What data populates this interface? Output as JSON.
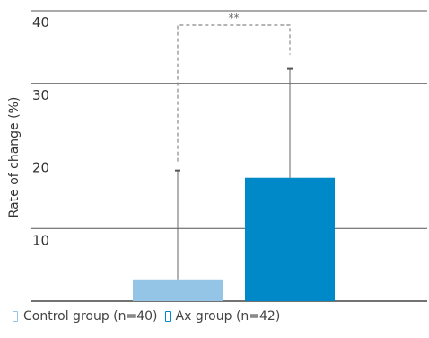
{
  "chart_data": {
    "type": "bar",
    "categories": [
      "Control group (n=40)",
      "Ax group (n=42)"
    ],
    "values": [
      3,
      17
    ],
    "error_upper": [
      18,
      32
    ],
    "colors": [
      "#94c4e6",
      "#0089c8"
    ],
    "ylabel": "Rate of change (%)",
    "yticks": [
      10,
      20,
      30,
      40
    ],
    "ylim": [
      0,
      40
    ],
    "significance": {
      "label": "**",
      "between": [
        0,
        1
      ]
    },
    "legend": [
      {
        "label": "Control group (n=40)",
        "color": "#94c4e6"
      },
      {
        "label": "Ax group (n=42)",
        "color": "#0089c8"
      }
    ],
    "legend_position": "bottom-left",
    "grid": true
  }
}
